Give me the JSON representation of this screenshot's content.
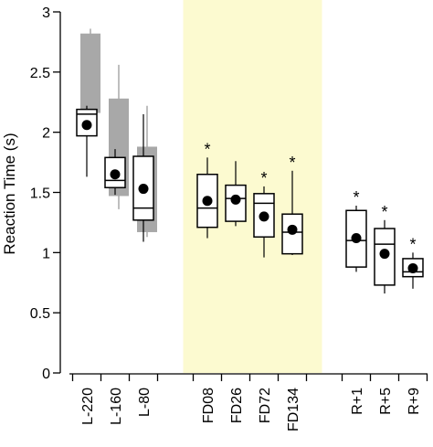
{
  "chart_data": {
    "type": "box",
    "ylabel": "Reaction Time (s)",
    "ylim": [
      0,
      3
    ],
    "yticks": [
      "0",
      "0.5",
      "1",
      "1.5",
      "2",
      "2.5",
      "3"
    ],
    "highlight": {
      "color": "#fcfad0",
      "from_category": "FD08",
      "to_category": "FD134"
    },
    "categories": [
      "L-220",
      "L-160",
      "L-80",
      "FD08",
      "FD26",
      "FD72",
      "FD134",
      "R+1",
      "R+5",
      "R+9"
    ],
    "groups": [
      [
        "L-220",
        "L-160",
        "L-80"
      ],
      [
        "FD08",
        "FD26",
        "FD72",
        "FD134"
      ],
      [
        "R+1",
        "R+5",
        "R+9"
      ]
    ],
    "series": [
      {
        "style": "white box with black mean dot",
        "boxes": [
          {
            "category": "L-220",
            "min": 1.63,
            "q1": 1.97,
            "median": 2.15,
            "q3": 2.19,
            "max": 2.22,
            "mean": 2.06,
            "significant": false
          },
          {
            "category": "L-160",
            "min": 1.48,
            "q1": 1.54,
            "median": 1.6,
            "q3": 1.79,
            "max": 1.86,
            "mean": 1.65,
            "significant": false
          },
          {
            "category": "L-80",
            "min": 1.09,
            "q1": 1.27,
            "median": 1.37,
            "q3": 1.8,
            "max": 2.15,
            "mean": 1.53,
            "significant": false
          },
          {
            "category": "FD08",
            "min": 1.12,
            "q1": 1.21,
            "median": 1.37,
            "q3": 1.65,
            "max": 1.79,
            "mean": 1.43,
            "significant": true
          },
          {
            "category": "FD26",
            "min": 1.22,
            "q1": 1.26,
            "median": 1.45,
            "q3": 1.56,
            "max": 1.76,
            "mean": 1.44,
            "significant": false
          },
          {
            "category": "FD72",
            "min": 0.96,
            "q1": 1.13,
            "median": 1.41,
            "q3": 1.49,
            "max": 1.55,
            "mean": 1.3,
            "significant": true
          },
          {
            "category": "FD134",
            "min": 0.98,
            "q1": 0.99,
            "median": 1.17,
            "q3": 1.32,
            "max": 1.68,
            "mean": 1.19,
            "significant": true
          },
          {
            "category": "R+1",
            "min": 0.84,
            "q1": 0.88,
            "median": 1.1,
            "q3": 1.35,
            "max": 1.39,
            "mean": 1.12,
            "significant": true
          },
          {
            "category": "R+5",
            "min": 0.66,
            "q1": 0.73,
            "median": 1.07,
            "q3": 1.2,
            "max": 1.27,
            "mean": 0.99,
            "significant": true
          },
          {
            "category": "R+9",
            "min": 0.7,
            "q1": 0.8,
            "median": 0.84,
            "q3": 0.95,
            "max": 1.0,
            "mean": 0.87,
            "significant": true
          }
        ]
      },
      {
        "style": "gray background box",
        "boxes": [
          {
            "category": "L-220",
            "min": 2.16,
            "q1": 2.16,
            "q3": 2.82,
            "max": 2.86
          },
          {
            "category": "L-160",
            "min": 1.36,
            "q1": 1.47,
            "q3": 2.28,
            "max": 2.56
          },
          {
            "category": "L-80",
            "min": 1.13,
            "q1": 1.17,
            "q3": 1.88,
            "max": 2.22
          }
        ]
      }
    ]
  }
}
